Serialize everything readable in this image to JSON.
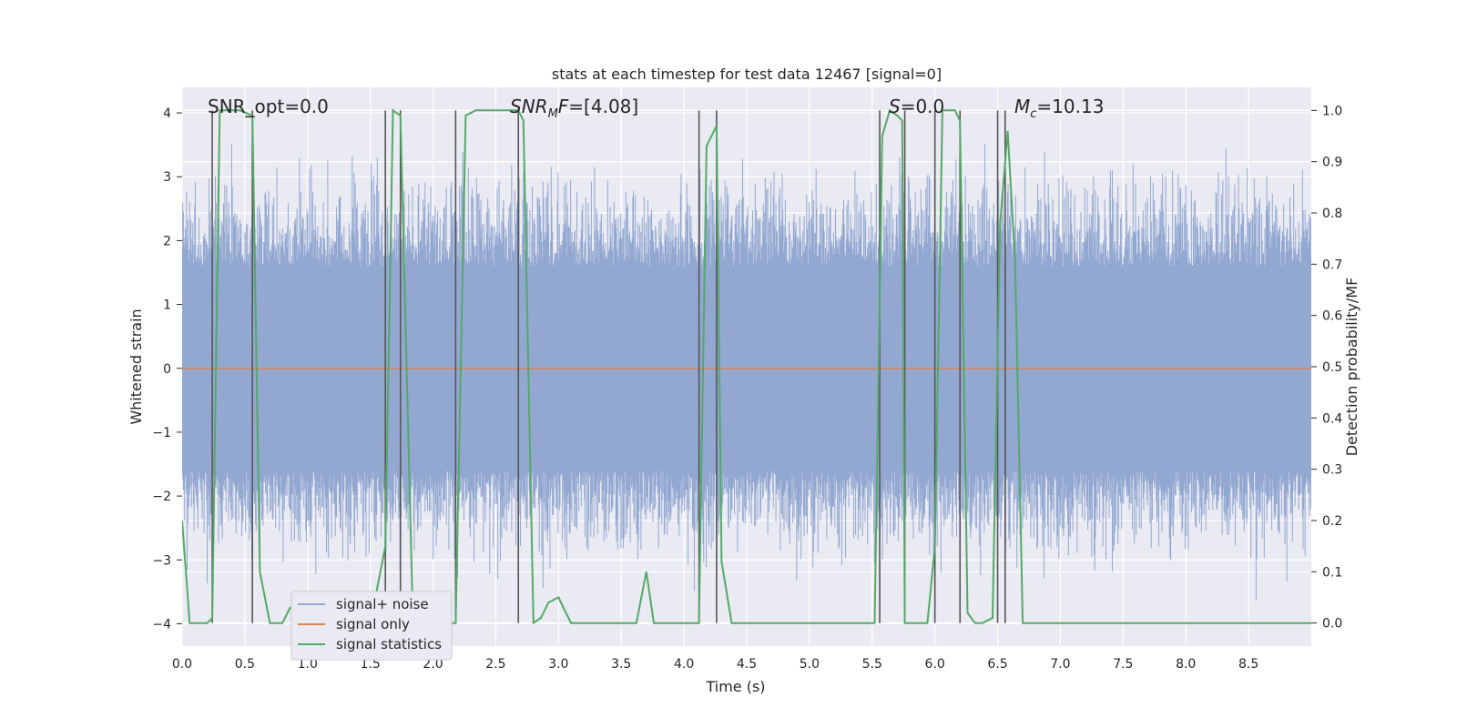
{
  "chart_data": {
    "type": "line",
    "title": "stats at each timestep for test data 12467 [signal=0]",
    "xlabel": "Time (s)",
    "ylabel": "Whitened strain",
    "ylabel_right": "Detection probability/MF",
    "xlim": [
      0.0,
      9.0
    ],
    "ylim": [
      -4.35,
      4.4
    ],
    "ylim_right": [
      -0.045,
      1.045
    ],
    "x_ticks": [
      "0.0",
      "0.5",
      "1.0",
      "1.5",
      "2.0",
      "2.5",
      "3.0",
      "3.5",
      "4.0",
      "4.5",
      "5.0",
      "5.5",
      "6.0",
      "6.5",
      "7.0",
      "7.5",
      "8.0",
      "8.5"
    ],
    "y_ticks": [
      "4",
      "3",
      "2",
      "1",
      "0",
      "−1",
      "−2",
      "−3",
      "−4"
    ],
    "y_ticks_right": [
      "1.0",
      "0.9",
      "0.8",
      "0.7",
      "0.6",
      "0.5",
      "0.4",
      "0.3",
      "0.2",
      "0.1",
      "0.0"
    ],
    "grid": true,
    "legend_position": "lower-left",
    "annotations": {
      "snr_opt": "SNR_opt=0.0",
      "snr_mf_label": "SNR",
      "snr_mf_sub": "M",
      "snr_mf_tail": "F",
      "snr_mf_value": "=[4.08]",
      "s_label": "S",
      "s_value": "=0.0",
      "mc_label": "M",
      "mc_sub": "c",
      "mc_value": "=10.13"
    },
    "series": [
      {
        "name": "signal+ noise",
        "color": "#92a8d1",
        "description_values": "dense whitened-strain noise, mostly within ±1.6, peaks ~±4",
        "envelope_core": 1.6,
        "envelope_peak": 4.0
      },
      {
        "name": "signal only",
        "color": "#dd8452",
        "x": [
          0.0,
          9.0
        ],
        "y": [
          0.0,
          0.0
        ]
      },
      {
        "name": "signal statistics",
        "color": "#55a868",
        "axis": "right",
        "x": [
          0.0,
          0.06,
          0.2,
          0.24,
          0.3,
          0.36,
          0.46,
          0.56,
          0.62,
          0.7,
          0.8,
          0.86,
          1.5,
          1.62,
          1.68,
          1.74,
          1.84,
          2.18,
          2.26,
          2.34,
          2.68,
          2.72,
          2.8,
          2.86,
          2.92,
          3.0,
          3.1,
          3.4,
          3.62,
          3.7,
          3.76,
          3.82,
          4.0,
          4.12,
          4.18,
          4.26,
          4.3,
          4.38,
          4.5,
          5.52,
          5.58,
          5.64,
          5.7,
          5.74,
          5.76,
          5.8,
          5.94,
          6.0,
          6.06,
          6.16,
          6.2,
          6.26,
          6.32,
          6.38,
          6.46,
          6.52,
          6.58,
          6.64,
          6.7,
          9.0
        ],
        "y": [
          0.2,
          0.0,
          0.0,
          0.01,
          1.0,
          1.0,
          1.0,
          0.99,
          0.1,
          0.0,
          0.0,
          0.03,
          0.0,
          0.15,
          1.0,
          0.99,
          0.0,
          0.0,
          0.99,
          1.0,
          1.0,
          0.98,
          0.0,
          0.01,
          0.04,
          0.05,
          0.0,
          0.0,
          0.0,
          0.1,
          0.0,
          0.0,
          0.0,
          0.0,
          0.93,
          0.97,
          0.12,
          0.0,
          0.0,
          0.0,
          0.95,
          1.0,
          0.99,
          0.98,
          0.0,
          0.0,
          0.0,
          0.15,
          1.0,
          1.0,
          0.98,
          0.02,
          0.0,
          0.0,
          0.01,
          0.78,
          0.96,
          0.7,
          0.0,
          0.0
        ]
      }
    ],
    "markers_x": [
      0.24,
      0.56,
      1.62,
      1.74,
      2.18,
      2.68,
      4.12,
      4.26,
      5.56,
      5.76,
      6.0,
      6.2,
      6.5,
      6.56
    ]
  }
}
